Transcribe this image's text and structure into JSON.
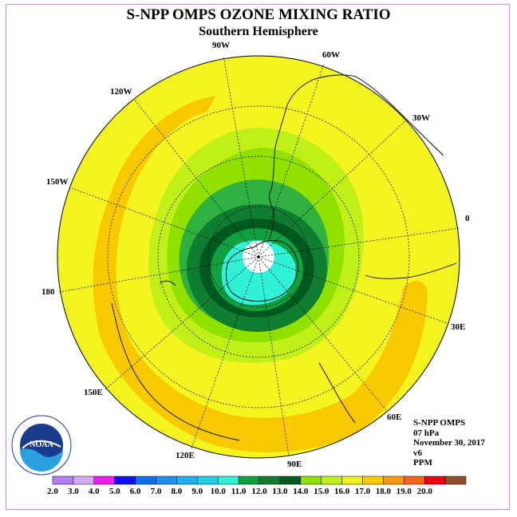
{
  "title": "S-NPP OMPS OZONE MIXING RATIO",
  "subtitle": "Southern Hemisphere",
  "longitude_labels": {
    "w90": "90W",
    "w60": "60W",
    "w30": "30W",
    "e0": "0",
    "e30": "30E",
    "e60": "60E",
    "e90": "90E",
    "e120": "120E",
    "e150": "150E",
    "l180": "180",
    "w150": "150W",
    "w120": "120W"
  },
  "info": {
    "instrument": "S-NPP OMPS",
    "pressure": "07 hPa",
    "date": "November 30, 2017",
    "version": "v6",
    "units": "PPM"
  },
  "logo": {
    "text": "NOAA"
  },
  "colorbar": {
    "labels": [
      "2.0",
      "3.0",
      "4.0",
      "5.0",
      "6.0",
      "7.0",
      "8.0",
      "9.0",
      "10.0",
      "11.0",
      "12.0",
      "13.0",
      "14.0",
      "15.0",
      "16.0",
      "17.0",
      "18.0",
      "19.0",
      "20.0"
    ],
    "colors": [
      "#b27ff0",
      "#d8a8f0",
      "#ee1ef0",
      "#1010f0",
      "#1070f0",
      "#1f90f0",
      "#20b0f0",
      "#24d0e8",
      "#30f0d8",
      "#10a040",
      "#107e30",
      "#005a20",
      "#90e000",
      "#c0f018",
      "#f0f020",
      "#f8c800",
      "#f89810",
      "#f86418",
      "#f00010",
      "#8e5030"
    ]
  },
  "colors": {
    "yellow": "#f4f420",
    "orange": "#f8c800",
    "light_green": "#c0f018",
    "green": "#90e000",
    "medium_green": "#30b040",
    "dark_green": "#107e30",
    "darker_green": "#005a20",
    "cyan": "#30f0d8"
  }
}
